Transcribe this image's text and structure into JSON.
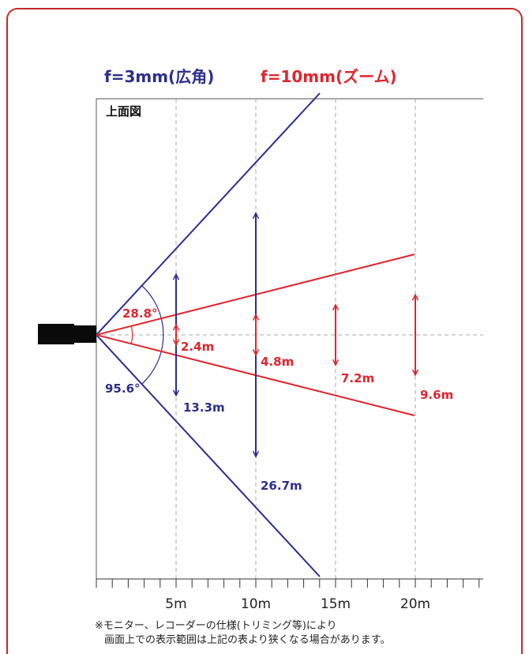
{
  "colors": {
    "blue": "#2b2f8a",
    "red": "#e0252e",
    "border": "#c8282c"
  },
  "headings": {
    "wide": "f=3mm(広角)",
    "zoom": "f=10mm(ズーム)"
  },
  "view_label": "上面図",
  "wide": {
    "angle_label": "95.6°",
    "widths": [
      {
        "distance_m": 5,
        "width_m": 13.3,
        "label": "13.3m"
      },
      {
        "distance_m": 10,
        "width_m": 26.7,
        "label": "26.7m"
      }
    ]
  },
  "zoom": {
    "angle_label": "28.8°",
    "widths": [
      {
        "distance_m": 5,
        "width_m": 2.4,
        "label": "2.4m"
      },
      {
        "distance_m": 10,
        "width_m": 4.8,
        "label": "4.8m"
      },
      {
        "distance_m": 15,
        "width_m": 7.2,
        "label": "7.2m"
      },
      {
        "distance_m": 20,
        "width_m": 9.6,
        "label": "9.6m"
      }
    ]
  },
  "axis": {
    "ticks": [
      {
        "value": 5,
        "label": "5m"
      },
      {
        "value": 10,
        "label": "10m"
      },
      {
        "value": 15,
        "label": "15m"
      },
      {
        "value": 20,
        "label": "20m"
      }
    ]
  },
  "notes": [
    "※モニター、レコーダーの仕様(トリミング等)により",
    "画面上での表示範囲は上記の表より狭くなる場合があります。"
  ]
}
